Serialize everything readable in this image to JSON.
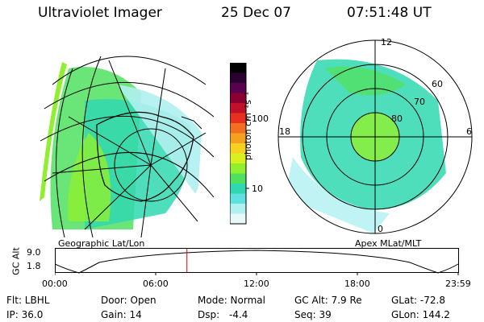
{
  "header": {
    "instrument": "Ultraviolet Imager",
    "date": "25 Dec 07",
    "time": "07:51:48 UT"
  },
  "maps": {
    "geographic_label": "Geographic Lat/Lon",
    "apex_label": "Apex MLat/MLT",
    "mlt_labels": {
      "top": "12",
      "left": "18",
      "right": "6",
      "bottom": "0"
    },
    "lat_labels": [
      "60",
      "70",
      "80"
    ]
  },
  "colorbar": {
    "unit_label": "photon cm⁻²s⁻¹",
    "ticks": [
      "100",
      "10"
    ],
    "colors": [
      "#000000",
      "#2a0030",
      "#5a0050",
      "#8a0030",
      "#c0102a",
      "#e83020",
      "#f07020",
      "#f4a020",
      "#f8d020",
      "#d8f020",
      "#90f030",
      "#50e060",
      "#30d8b0",
      "#60e0e0",
      "#b0f0f0",
      "#e8f8f8"
    ]
  },
  "altitude_plot": {
    "ylabel": "GC Alt",
    "yticks": [
      "9.0",
      "1.8"
    ],
    "xticks": [
      "00:00",
      "06:00",
      "12:00",
      "18:00",
      "23:59"
    ],
    "marker_hour": 7.86
  },
  "info": {
    "filter": "Flt: LBHL",
    "door": "Door: Open",
    "mode": "Mode: Normal",
    "gc_alt": "GC Alt: 7.9 Re",
    "glat": "GLat: -72.8",
    "ip": "IP: 36.0",
    "gain": "Gain: 14",
    "dsp_label": "Dsp:",
    "dsp_value": "-4.4",
    "seq": "Seq: 39",
    "glon": "GLon: 144.2"
  }
}
